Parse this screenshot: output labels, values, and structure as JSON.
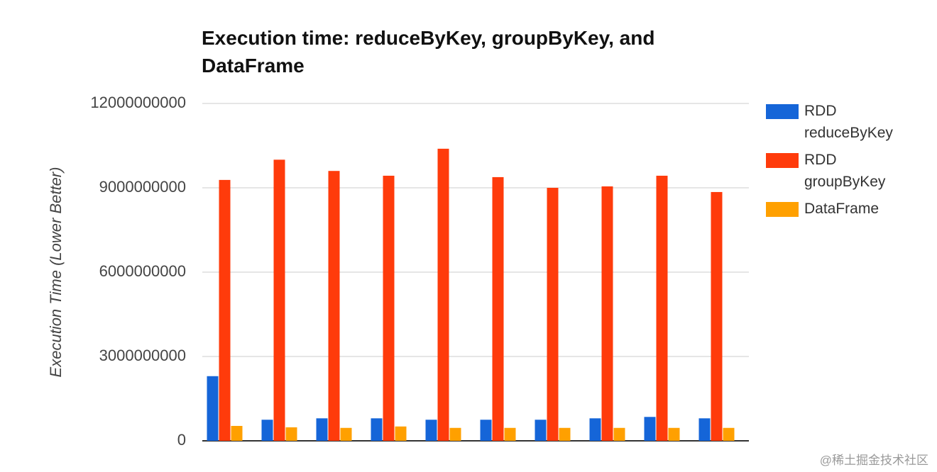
{
  "chart_data": {
    "type": "bar",
    "title": "Execution time: reduceByKey, groupByKey, and DataFrame",
    "y_label": "Execution Time (Lower Better)",
    "categories": [
      null,
      null,
      null,
      null,
      null,
      null,
      null,
      null,
      null,
      null
    ],
    "series": [
      {
        "name": "RDD reduceByKey",
        "color": "#1565d8",
        "values": [
          2300000000,
          750000000,
          800000000,
          800000000,
          750000000,
          750000000,
          750000000,
          800000000,
          850000000,
          800000000
        ]
      },
      {
        "name": "RDD groupByKey",
        "color": "#ff3b0b",
        "values": [
          9280000000,
          10000000000,
          9600000000,
          9430000000,
          10390000000,
          9380000000,
          9000000000,
          9050000000,
          9430000000,
          8850000000
        ]
      },
      {
        "name": "DataFrame",
        "color": "#ffa000",
        "values": [
          530000000,
          480000000,
          460000000,
          510000000,
          460000000,
          460000000,
          460000000,
          460000000,
          460000000,
          460000000
        ]
      }
    ],
    "ylim": [
      0,
      12000000000
    ],
    "yticks": [
      0,
      3000000000,
      6000000000,
      9000000000,
      12000000000
    ],
    "grid": true,
    "legend": "right",
    "watermark": "@稀土掘金技术社区"
  }
}
